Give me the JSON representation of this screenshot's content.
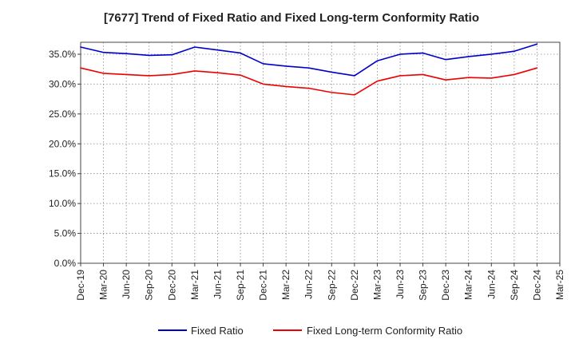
{
  "chart_data": {
    "type": "line",
    "title": "[7677]  Trend of Fixed Ratio and Fixed Long-term Conformity Ratio",
    "xlabel": "",
    "ylabel": "",
    "x": [
      "Dec-19",
      "Mar-20",
      "Jun-20",
      "Sep-20",
      "Dec-20",
      "Mar-21",
      "Jun-21",
      "Sep-21",
      "Dec-21",
      "Mar-22",
      "Jun-22",
      "Sep-22",
      "Dec-22",
      "Mar-23",
      "Jun-23",
      "Sep-23",
      "Dec-23",
      "Mar-24",
      "Jun-24",
      "Sep-24",
      "Dec-24",
      "Mar-25"
    ],
    "x_ticks": [
      "Dec-19",
      "Mar-20",
      "Jun-20",
      "Sep-20",
      "Dec-20",
      "Mar-21",
      "Jun-21",
      "Sep-21",
      "Dec-21",
      "Mar-22",
      "Jun-22",
      "Sep-22",
      "Dec-22",
      "Mar-23",
      "Jun-23",
      "Sep-23",
      "Dec-23",
      "Mar-24",
      "Jun-24",
      "Sep-24",
      "Dec-24",
      "Mar-25"
    ],
    "y_ticks": [
      "0.0%",
      "5.0%",
      "10.0%",
      "15.0%",
      "20.0%",
      "25.0%",
      "30.0%",
      "35.0%"
    ],
    "y_tick_values": [
      0,
      5,
      10,
      15,
      20,
      25,
      30,
      35
    ],
    "ylim": [
      0,
      37
    ],
    "grid": true,
    "legend_position": "bottom",
    "series": [
      {
        "name": "Fixed Ratio",
        "color": "#0000cc",
        "values": [
          36.2,
          35.3,
          35.1,
          34.8,
          34.9,
          36.2,
          35.7,
          35.2,
          33.4,
          33.0,
          32.7,
          32.0,
          31.4,
          33.9,
          35.0,
          35.2,
          34.1,
          34.6,
          35.0,
          35.5,
          36.7,
          null
        ]
      },
      {
        "name": "Fixed Long-term Conformity Ratio",
        "color": "#ee0000",
        "values": [
          32.7,
          31.8,
          31.6,
          31.4,
          31.6,
          32.2,
          31.9,
          31.5,
          30.0,
          29.6,
          29.3,
          28.6,
          28.2,
          30.5,
          31.4,
          31.6,
          30.7,
          31.1,
          31.0,
          31.6,
          32.7,
          null
        ]
      }
    ]
  }
}
